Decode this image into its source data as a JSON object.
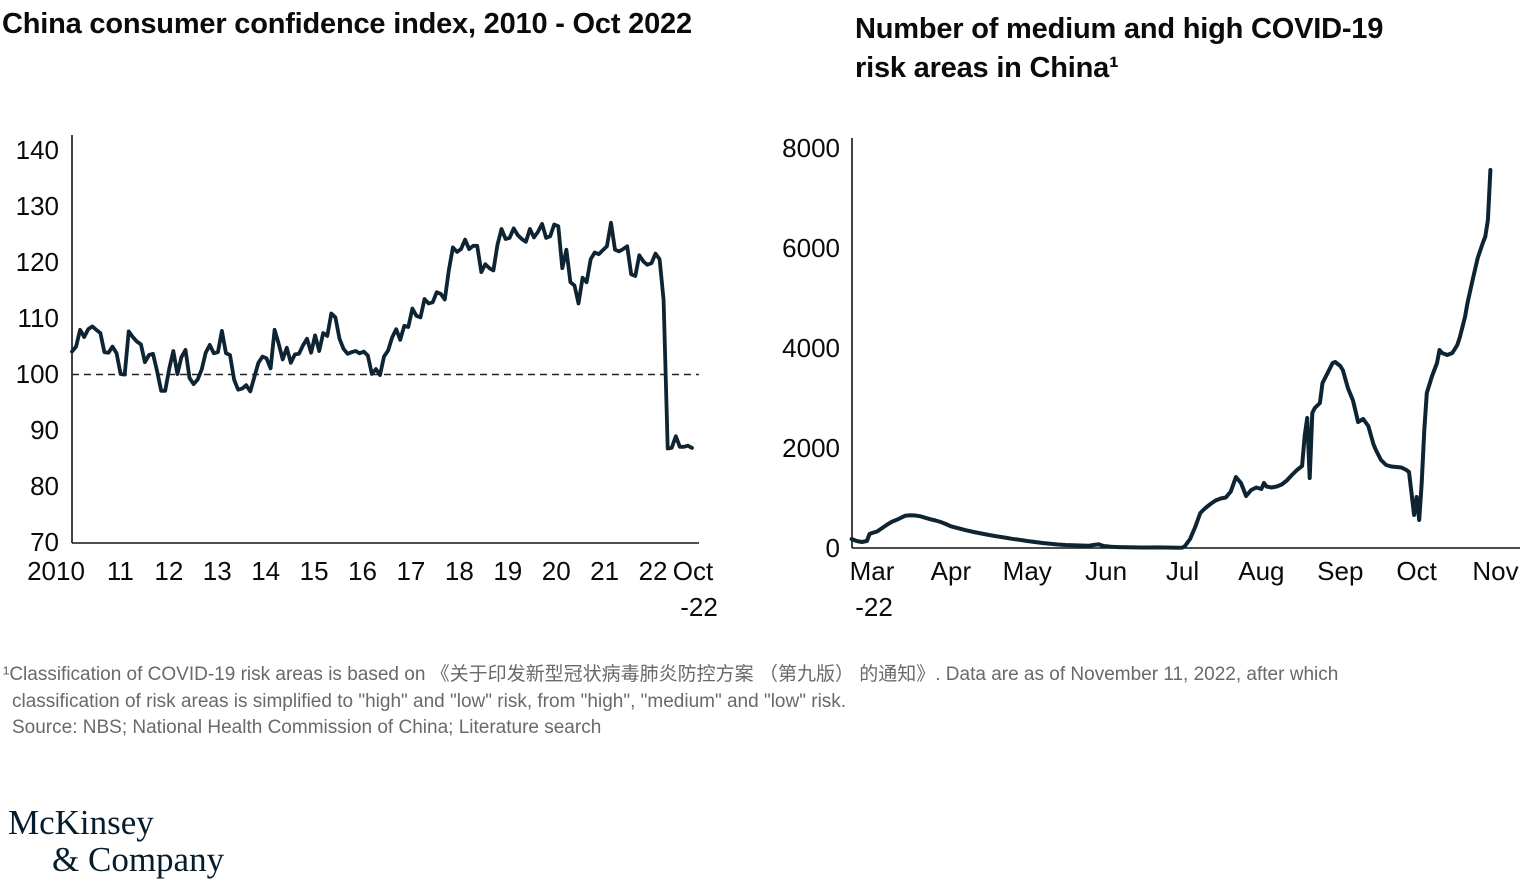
{
  "page": {
    "background": "#ffffff",
    "ink": "#141414",
    "accent_navy": "#0e2433",
    "footnote_gray": "#67696b",
    "logo_navy": "#051c2c"
  },
  "chart_data": [
    {
      "type": "line",
      "title": "China consumer confidence index, 2010 - Oct 2022",
      "x_unit": "month",
      "x_start": "2010-01",
      "x_end": "2022-10",
      "ylim": [
        70,
        140
      ],
      "y_ticks": [
        140,
        130,
        120,
        110,
        100,
        90,
        80,
        70
      ],
      "x_tick_labels": [
        "2010",
        "11",
        "12",
        "13",
        "14",
        "15",
        "16",
        "17",
        "18",
        "19",
        "20",
        "21",
        "22"
      ],
      "x_end_label": {
        "line1": "Oct",
        "line2": "-22"
      },
      "reference_line": 100,
      "grid": false,
      "legend": "none",
      "line_color": "#0e2433",
      "values": [
        104.0,
        104.9,
        107.9,
        106.6,
        108.0,
        108.5,
        107.9,
        107.3,
        103.9,
        103.8,
        104.9,
        103.7,
        100.0,
        99.9,
        107.6,
        106.6,
        105.8,
        105.3,
        102.1,
        103.4,
        103.6,
        100.5,
        97.0,
        97.0,
        101.0,
        104.1,
        100.0,
        103.0,
        104.3,
        99.3,
        98.2,
        99.0,
        100.8,
        103.8,
        105.2,
        103.7,
        103.9,
        107.7,
        103.7,
        103.4,
        99.0,
        97.2,
        97.4,
        98.0,
        96.9,
        99.5,
        102.0,
        103.1,
        102.8,
        101.0,
        107.9,
        105.4,
        102.6,
        104.7,
        102.0,
        103.5,
        103.6,
        105.1,
        106.3,
        103.8,
        106.9,
        104.1,
        107.3,
        106.8,
        110.8,
        110.1,
        106.3,
        104.5,
        103.6,
        103.9,
        104.1,
        103.7,
        104.0,
        103.3,
        100.0,
        100.9,
        99.8,
        103.1,
        104.2,
        106.5,
        108.0,
        106.1,
        108.6,
        108.4,
        111.7,
        110.4,
        110.1,
        113.4,
        112.6,
        112.8,
        114.6,
        114.3,
        113.3,
        118.6,
        122.6,
        121.8,
        122.3,
        124.0,
        122.3,
        122.9,
        122.9,
        118.2,
        119.6,
        118.9,
        118.5,
        123.1,
        125.9,
        124.1,
        124.3,
        126.0,
        124.8,
        124.1,
        123.6,
        125.9,
        124.4,
        125.4,
        126.8,
        124.3,
        124.6,
        126.7,
        126.4,
        118.9,
        122.2,
        116.4,
        115.8,
        112.6,
        117.2,
        116.4,
        120.5,
        121.7,
        121.4,
        122.1,
        122.8,
        127.0,
        122.2,
        121.9,
        122.3,
        122.8,
        117.8,
        117.5,
        121.2,
        120.1,
        119.5,
        119.8,
        121.5,
        120.5,
        113.2,
        86.7,
        86.8,
        88.9,
        87.0,
        87.0,
        87.2,
        86.8
      ]
    },
    {
      "type": "line",
      "title_line1": "Number of medium and high COVID-19",
      "title_line2": "risk areas in China¹",
      "x_unit": "days_since_2022-03-01",
      "ylim": [
        0,
        8000
      ],
      "y_ticks": [
        8000,
        6000,
        4000,
        2000,
        0
      ],
      "x_tick_labels": [
        "Mar",
        "Apr",
        "May",
        "Jun",
        "Jul",
        "Aug",
        "Sep",
        "Oct",
        "Nov"
      ],
      "x_first_label_line2": "-22",
      "grid": false,
      "legend": "none",
      "line_color": "#0e2433",
      "points": [
        [
          -8,
          180
        ],
        [
          -6,
          140
        ],
        [
          -4,
          120
        ],
        [
          -2,
          140
        ],
        [
          -1,
          280
        ],
        [
          0,
          300
        ],
        [
          2,
          330
        ],
        [
          4,
          400
        ],
        [
          6,
          470
        ],
        [
          8,
          530
        ],
        [
          10,
          570
        ],
        [
          12,
          620
        ],
        [
          13,
          645
        ],
        [
          15,
          655
        ],
        [
          17,
          650
        ],
        [
          19,
          635
        ],
        [
          21,
          605
        ],
        [
          23,
          575
        ],
        [
          25,
          550
        ],
        [
          27,
          520
        ],
        [
          29,
          480
        ],
        [
          31,
          435
        ],
        [
          34,
          395
        ],
        [
          37,
          355
        ],
        [
          40,
          320
        ],
        [
          43,
          290
        ],
        [
          46,
          260
        ],
        [
          49,
          235
        ],
        [
          52,
          210
        ],
        [
          55,
          185
        ],
        [
          58,
          165
        ],
        [
          61,
          140
        ],
        [
          64,
          120
        ],
        [
          67,
          100
        ],
        [
          70,
          85
        ],
        [
          73,
          70
        ],
        [
          76,
          60
        ],
        [
          79,
          55
        ],
        [
          82,
          50
        ],
        [
          85,
          45
        ],
        [
          87,
          60
        ],
        [
          89,
          75
        ],
        [
          91,
          40
        ],
        [
          94,
          25
        ],
        [
          97,
          18
        ],
        [
          100,
          15
        ],
        [
          103,
          12
        ],
        [
          106,
          10
        ],
        [
          109,
          10
        ],
        [
          112,
          12
        ],
        [
          115,
          10
        ],
        [
          118,
          8
        ],
        [
          120,
          6
        ],
        [
          122,
          8
        ],
        [
          123,
          40
        ],
        [
          125,
          180
        ],
        [
          127,
          420
        ],
        [
          129,
          700
        ],
        [
          131,
          800
        ],
        [
          133,
          880
        ],
        [
          135,
          950
        ],
        [
          137,
          990
        ],
        [
          139,
          1010
        ],
        [
          141,
          1130
        ],
        [
          143,
          1420
        ],
        [
          145,
          1300
        ],
        [
          147,
          1040
        ],
        [
          149,
          1160
        ],
        [
          151,
          1210
        ],
        [
          153,
          1180
        ],
        [
          154,
          1300
        ],
        [
          155,
          1230
        ],
        [
          157,
          1210
        ],
        [
          159,
          1230
        ],
        [
          161,
          1270
        ],
        [
          163,
          1350
        ],
        [
          165,
          1460
        ],
        [
          167,
          1560
        ],
        [
          169,
          1640
        ],
        [
          170,
          2250
        ],
        [
          171,
          2600
        ],
        [
          172,
          1400
        ],
        [
          173,
          2700
        ],
        [
          174,
          2800
        ],
        [
          176,
          2900
        ],
        [
          177,
          3300
        ],
        [
          179,
          3500
        ],
        [
          181,
          3700
        ],
        [
          182,
          3720
        ],
        [
          184,
          3640
        ],
        [
          185,
          3560
        ],
        [
          187,
          3200
        ],
        [
          189,
          2950
        ],
        [
          191,
          2520
        ],
        [
          193,
          2580
        ],
        [
          195,
          2440
        ],
        [
          197,
          2080
        ],
        [
          198,
          1960
        ],
        [
          200,
          1760
        ],
        [
          202,
          1660
        ],
        [
          204,
          1630
        ],
        [
          206,
          1620
        ],
        [
          208,
          1610
        ],
        [
          210,
          1560
        ],
        [
          211,
          1520
        ],
        [
          212,
          1100
        ],
        [
          213,
          660
        ],
        [
          214,
          1020
        ],
        [
          215,
          560
        ],
        [
          216,
          1300
        ],
        [
          217,
          2360
        ],
        [
          218,
          3100
        ],
        [
          220,
          3430
        ],
        [
          222,
          3700
        ],
        [
          223,
          3960
        ],
        [
          224,
          3900
        ],
        [
          226,
          3860
        ],
        [
          228,
          3900
        ],
        [
          230,
          4060
        ],
        [
          231,
          4220
        ],
        [
          233,
          4620
        ],
        [
          234,
          4900
        ],
        [
          236,
          5360
        ],
        [
          238,
          5800
        ],
        [
          240,
          6100
        ],
        [
          241,
          6230
        ],
        [
          242,
          6560
        ],
        [
          243,
          7560
        ]
      ]
    }
  ],
  "footnote": {
    "line1": "¹Classification of COVID-19 risk areas is based on 《关于印发新型冠状病毒肺炎防控方案 （第九版） 的通知》. Data are as of November 11, 2022, after which",
    "line2": "classification of risk areas is simplified to \"high\" and \"low\" risk, from \"high\", \"medium\" and \"low\" risk.",
    "source": "Source: NBS; National Health Commission of China; Literature search"
  },
  "logo": {
    "line1": "McKinsey",
    "line2": "& Company"
  }
}
